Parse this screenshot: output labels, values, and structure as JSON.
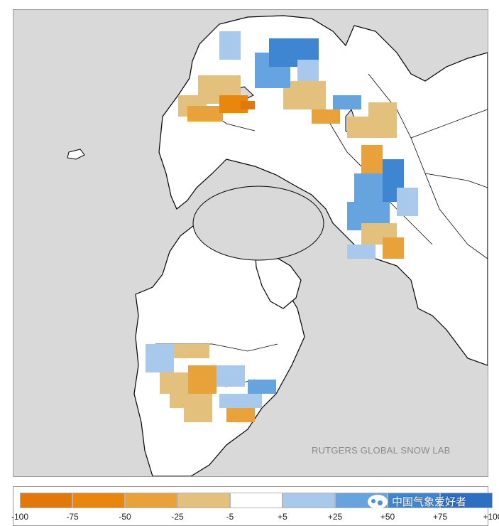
{
  "map": {
    "credit": "RUTGERS GLOBAL SNOW LAB",
    "colors": {
      "ocean": "#d9d9d9",
      "land": "#ffffff",
      "border": "#000000"
    }
  },
  "legend": {
    "swatches": [
      {
        "range": "-100 to -75",
        "color": "#e2780a"
      },
      {
        "range": "-75 to -50",
        "color": "#e8860e"
      },
      {
        "range": "-50 to -25",
        "color": "#e9a23a"
      },
      {
        "range": "-25 to -5",
        "color": "#e3c07c"
      },
      {
        "range": "-5 to +5",
        "color": "#ffffff"
      },
      {
        "range": "+5 to +25",
        "color": "#a9c9ec"
      },
      {
        "range": "+25 to +50",
        "color": "#66a4e0"
      },
      {
        "range": "+50 to +75",
        "color": "#3f86d2"
      },
      {
        "range": "+75 to +100",
        "color": "#2d6fc0"
      }
    ],
    "ticks": [
      "-100",
      "-75",
      "-50",
      "-25",
      "-5",
      "+5",
      "+25",
      "+50",
      "+75",
      "+100"
    ]
  },
  "watermark": {
    "text": "中国气象爱好者",
    "icon": "wechat-icon"
  }
}
